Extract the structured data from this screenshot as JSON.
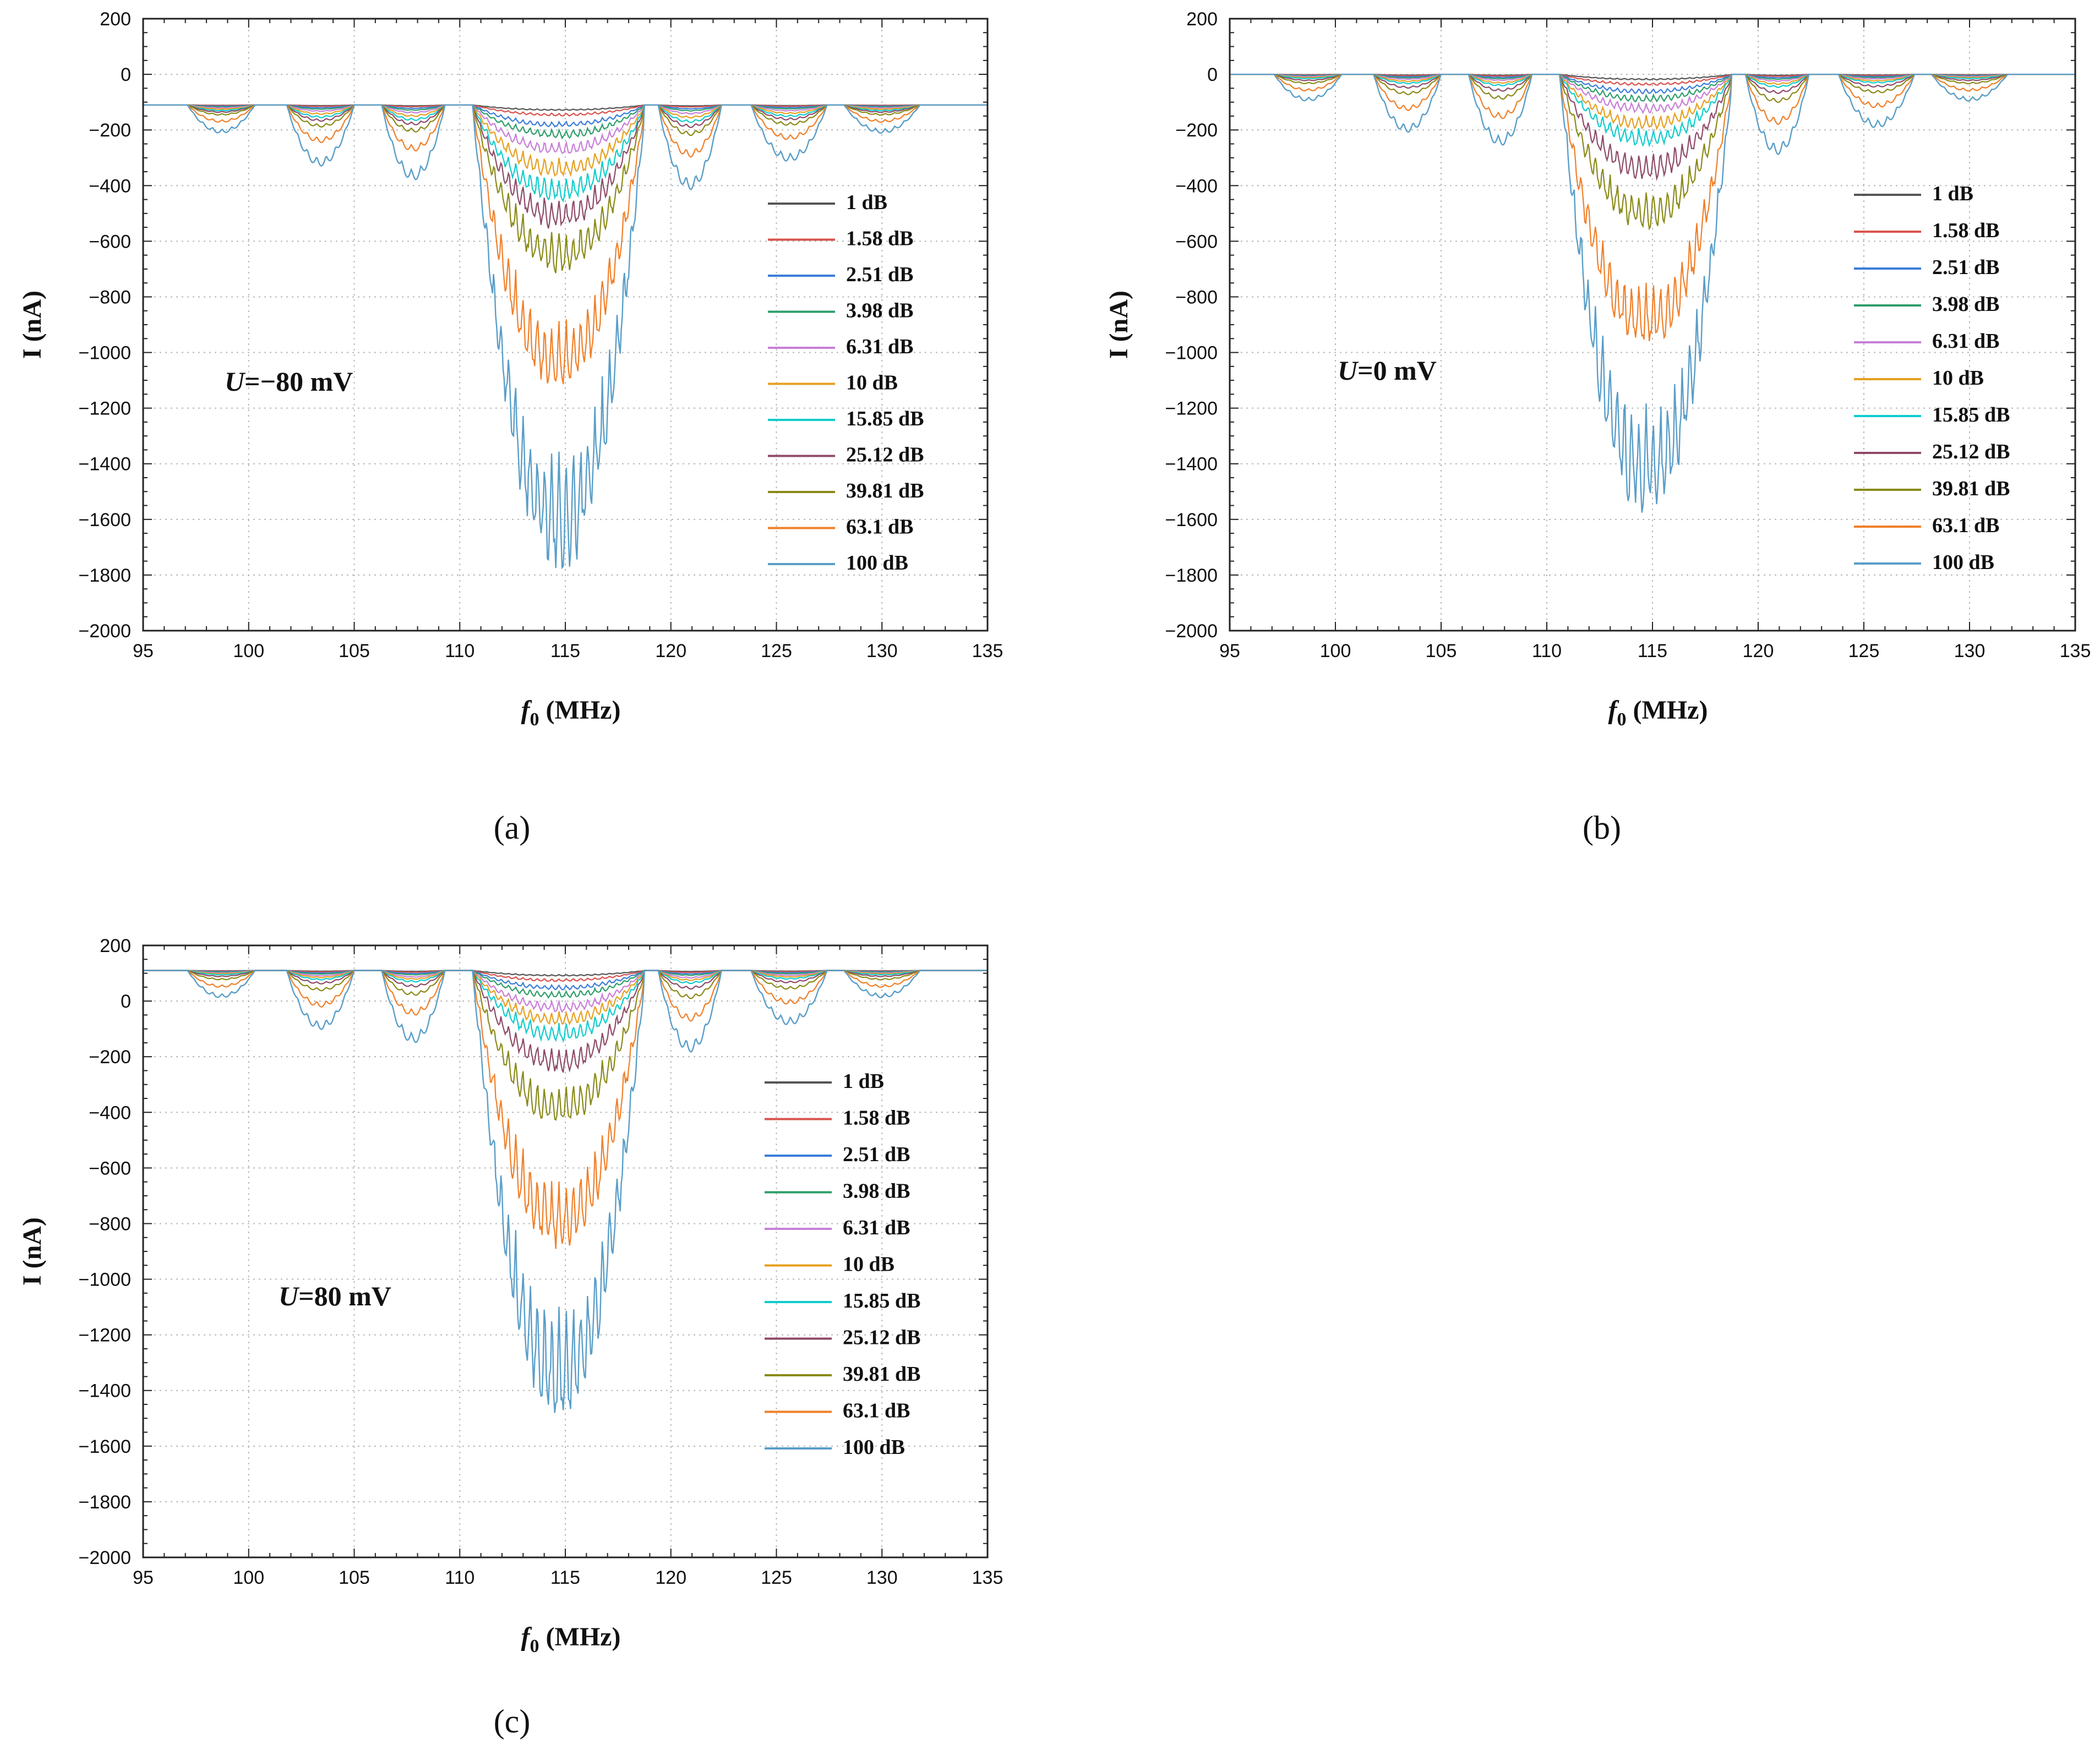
{
  "chart_data": [
    {
      "type": "line",
      "panel_label": "(a)",
      "annotation": {
        "var": "U",
        "text": "=−80 mV"
      },
      "xlabel": {
        "var": "f",
        "sub": "0",
        "text": " (MHz)"
      },
      "ylabel": "I (nA)",
      "xlim": [
        95,
        135
      ],
      "ylim": [
        -2000,
        200
      ],
      "xticks": [
        "95",
        "100",
        "105",
        "110",
        "115",
        "120",
        "125",
        "130",
        "135"
      ],
      "yticks": [
        "200",
        "0",
        "−200",
        "−400",
        "−600",
        "−800",
        "−1000",
        "−1200",
        "−1400",
        "−1600",
        "−1800",
        "−2000"
      ],
      "grid": true,
      "legend_position": "right",
      "baseline_nA": -110,
      "series_min_nA": [
        -130,
        -150,
        -190,
        -230,
        -290,
        -370,
        -460,
        -560,
        -720,
        -1150,
        -1800
      ],
      "series": [
        {
          "name": "1 dB",
          "color": "#555555"
        },
        {
          "name": "1.58 dB",
          "color": "#d9534f"
        },
        {
          "name": "2.51 dB",
          "color": "#3b7dd8"
        },
        {
          "name": "3.98 dB",
          "color": "#2e9e6a"
        },
        {
          "name": "6.31 dB",
          "color": "#c87fd8"
        },
        {
          "name": "10 dB",
          "color": "#e6a020"
        },
        {
          "name": "15.85 dB",
          "color": "#10cccc"
        },
        {
          "name": "25.12 dB",
          "color": "#8e4a68"
        },
        {
          "name": "39.81 dB",
          "color": "#8a8a18"
        },
        {
          "name": "63.1 dB",
          "color": "#f07f28"
        },
        {
          "name": "100 dB",
          "color": "#5a9ec8"
        }
      ]
    },
    {
      "type": "line",
      "panel_label": "(b)",
      "annotation": {
        "var": "U",
        "text": "=0 mV"
      },
      "xlabel": {
        "var": "f",
        "sub": "0",
        "text": " (MHz)"
      },
      "ylabel": "I (nA)",
      "xlim": [
        95,
        135
      ],
      "ylim": [
        -2000,
        200
      ],
      "xticks": [
        "95",
        "100",
        "105",
        "110",
        "115",
        "120",
        "125",
        "130",
        "135"
      ],
      "yticks": [
        "200",
        "0",
        "−200",
        "−400",
        "−600",
        "−800",
        "−1000",
        "−1200",
        "−1400",
        "−1600",
        "−1800",
        "−2000"
      ],
      "grid": true,
      "legend_position": "right",
      "baseline_nA": 0,
      "series_min_nA": [
        -20,
        -40,
        -70,
        -100,
        -140,
        -200,
        -260,
        -380,
        -560,
        -1000,
        -1600
      ],
      "series": [
        {
          "name": "1 dB",
          "color": "#555555"
        },
        {
          "name": "1.58 dB",
          "color": "#d9534f"
        },
        {
          "name": "2.51 dB",
          "color": "#3b7dd8"
        },
        {
          "name": "3.98 dB",
          "color": "#2e9e6a"
        },
        {
          "name": "6.31 dB",
          "color": "#c87fd8"
        },
        {
          "name": "10 dB",
          "color": "#e6a020"
        },
        {
          "name": "15.85 dB",
          "color": "#10cccc"
        },
        {
          "name": "25.12 dB",
          "color": "#8e4a68"
        },
        {
          "name": "39.81 dB",
          "color": "#8a8a18"
        },
        {
          "name": "63.1 dB",
          "color": "#f07f28"
        },
        {
          "name": "100 dB",
          "color": "#5a9ec8"
        }
      ]
    },
    {
      "type": "line",
      "panel_label": "(c)",
      "annotation": {
        "var": "U",
        "text": "=80 mV"
      },
      "xlabel": {
        "var": "f",
        "sub": "0",
        "text": " (MHz)"
      },
      "ylabel": "I (nA)",
      "xlim": [
        95,
        135
      ],
      "ylim": [
        -2000,
        200
      ],
      "xticks": [
        "95",
        "100",
        "105",
        "110",
        "115",
        "120",
        "125",
        "130",
        "135"
      ],
      "yticks": [
        "200",
        "0",
        "−200",
        "−400",
        "−600",
        "−800",
        "−1000",
        "−1200",
        "−1400",
        "−1600",
        "−1800",
        "−2000"
      ],
      "grid": true,
      "legend_position": "right",
      "baseline_nA": 110,
      "series_min_nA": [
        90,
        70,
        40,
        10,
        -40,
        -90,
        -150,
        -260,
        -450,
        -900,
        -1520
      ],
      "series": [
        {
          "name": "1 dB",
          "color": "#555555"
        },
        {
          "name": "1.58 dB",
          "color": "#d9534f"
        },
        {
          "name": "2.51 dB",
          "color": "#3b7dd8"
        },
        {
          "name": "3.98 dB",
          "color": "#2e9e6a"
        },
        {
          "name": "6.31 dB",
          "color": "#c87fd8"
        },
        {
          "name": "10 dB",
          "color": "#e6a020"
        },
        {
          "name": "15.85 dB",
          "color": "#10cccc"
        },
        {
          "name": "25.12 dB",
          "color": "#8e4a68"
        },
        {
          "name": "39.81 dB",
          "color": "#8a8a18"
        },
        {
          "name": "63.1 dB",
          "color": "#f07f28"
        },
        {
          "name": "100 dB",
          "color": "#5a9ec8"
        }
      ]
    }
  ]
}
